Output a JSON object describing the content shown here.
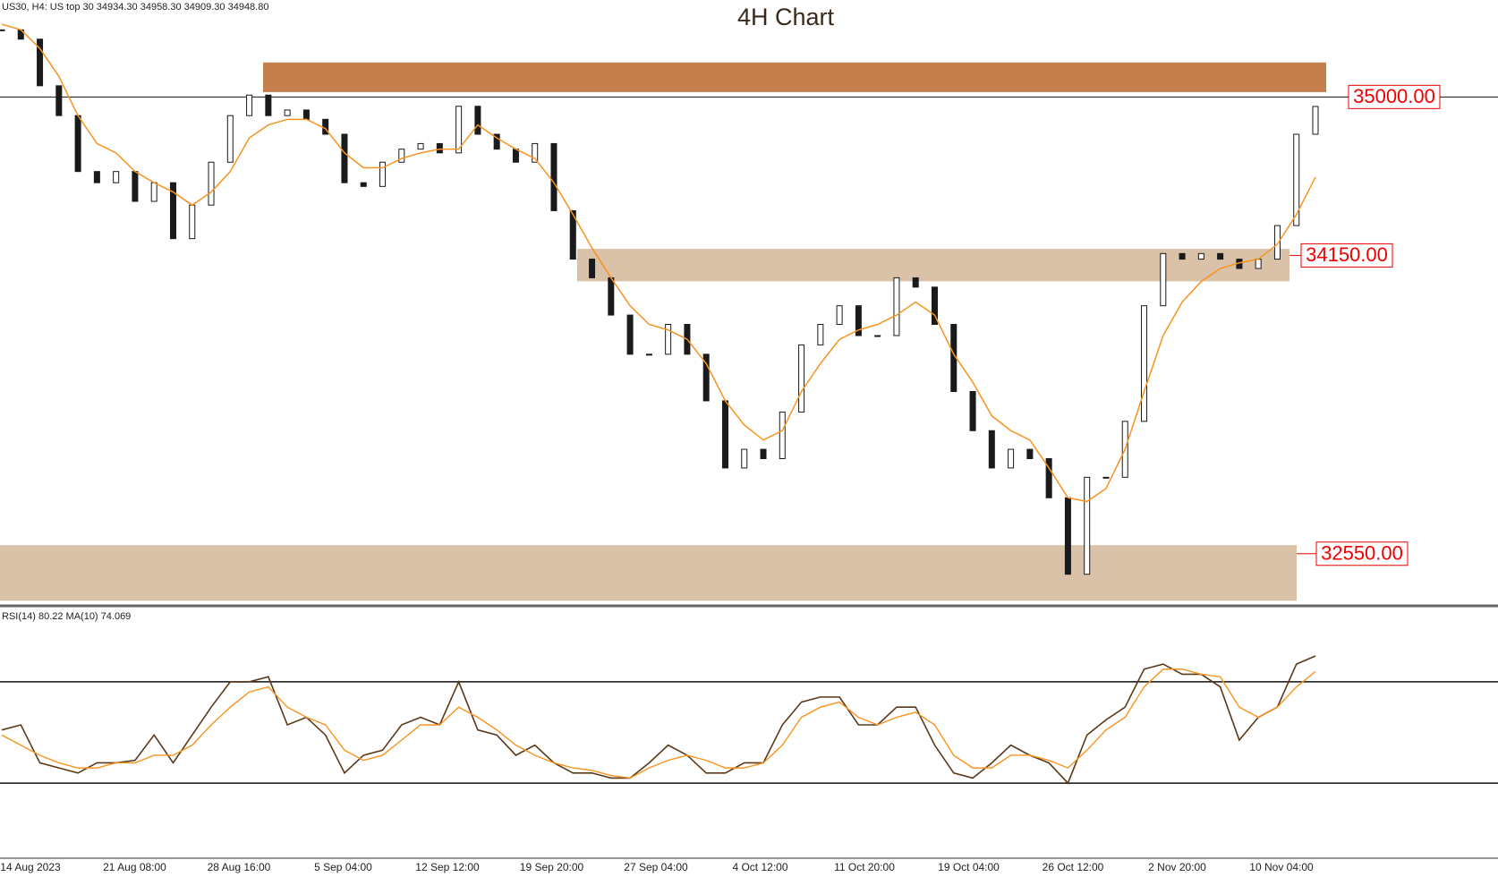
{
  "header": "US30, H4:  US top 30  34934.30 34958.30 34909.30 34948.80",
  "chart_data": [
    {
      "type": "candlestick",
      "title": "4H Chart",
      "color": "#1a1a1a",
      "up_color": "#ffffff",
      "close": [
        35360,
        35310,
        35060,
        34900,
        34600,
        34540,
        34600,
        34440,
        34540,
        34240,
        34420,
        34650,
        34900,
        35010,
        34900,
        34930,
        34880,
        34800,
        34540,
        34520,
        34650,
        34720,
        34750,
        34700,
        34950,
        34800,
        34720,
        34650,
        34750,
        34390,
        34130,
        34030,
        33830,
        33620,
        33620,
        33780,
        33620,
        33370,
        33010,
        33110,
        33060,
        33310,
        33670,
        33780,
        33880,
        33720,
        33720,
        34030,
        33980,
        33780,
        33420,
        33210,
        33010,
        33110,
        33060,
        32850,
        32440,
        32960,
        32960,
        33260,
        33880,
        34160,
        34130,
        34160,
        34130,
        34080,
        34130,
        34310,
        34800,
        34949
      ],
      "ma": [
        35390,
        35360,
        35260,
        35110,
        34900,
        34750,
        34700,
        34600,
        34540,
        34490,
        34420,
        34490,
        34600,
        34780,
        34850,
        34880,
        34880,
        34830,
        34700,
        34620,
        34620,
        34670,
        34700,
        34720,
        34720,
        34850,
        34780,
        34720,
        34670,
        34540,
        34370,
        34190,
        34030,
        33880,
        33780,
        33750,
        33700,
        33570,
        33370,
        33240,
        33160,
        33210,
        33420,
        33570,
        33700,
        33750,
        33780,
        33830,
        33900,
        33830,
        33620,
        33470,
        33290,
        33210,
        33160,
        33010,
        32850,
        32830,
        32900,
        33110,
        33420,
        33720,
        33900,
        34010,
        34080,
        34110,
        34130,
        34210,
        34370,
        34570
      ],
      "ma_color": "#f7931e",
      "ylim": [
        32280,
        35520
      ],
      "zones": [
        {
          "from": 35026,
          "to": 35185,
          "color": "#c47f4c"
        },
        {
          "from": 34011,
          "to": 34185,
          "color": "#d9c2a7"
        },
        {
          "from": 32298,
          "to": 32596,
          "color": "#d9c2a7"
        }
      ],
      "levels": [
        {
          "value": 35000,
          "label": "35000.00"
        },
        {
          "value": 34150,
          "label": "34150.00"
        },
        {
          "value": 32550,
          "label": "32550.00"
        }
      ],
      "label_color": "#ee0000"
    },
    {
      "type": "line",
      "title": "RSI(14) 80.22 MA(10) 74.069",
      "ylim": [
        0,
        100
      ],
      "levels": [
        70,
        30
      ],
      "series": [
        {
          "color": "#5a3818",
          "values": [
            51,
            53,
            38,
            36,
            34,
            38,
            38,
            39,
            49,
            38,
            49,
            60,
            70,
            70,
            72,
            53,
            56,
            49,
            34,
            41,
            43,
            53,
            56,
            53,
            70,
            51,
            49,
            41,
            45,
            38,
            34,
            34,
            32,
            32,
            38,
            45,
            41,
            34,
            34,
            38,
            38,
            53,
            62,
            64,
            64,
            53,
            53,
            60,
            60,
            45,
            34,
            32,
            38,
            45,
            41,
            38,
            30,
            49,
            55,
            60,
            75,
            77,
            73,
            73,
            68,
            47,
            56,
            60,
            77,
            80.22
          ]
        },
        {
          "color": "#f7931e",
          "values": [
            49,
            45,
            41,
            38,
            36,
            36,
            38,
            38,
            41,
            41,
            45,
            53,
            60,
            66,
            68,
            60,
            56,
            53,
            43,
            39,
            41,
            47,
            53,
            53,
            60,
            56,
            51,
            45,
            41,
            38,
            36,
            35,
            33,
            32,
            36,
            39,
            41,
            39,
            36,
            36,
            38,
            45,
            56,
            60,
            62,
            56,
            53,
            56,
            58,
            53,
            41,
            36,
            36,
            41,
            41,
            39,
            36,
            43,
            51,
            56,
            68,
            75,
            75,
            73,
            72,
            60,
            56,
            60,
            68,
            74.069
          ]
        }
      ],
      "x_labels": [
        "14 Aug 2023",
        "21 Aug 08:00",
        "28 Aug 16:00",
        "5 Sep 04:00",
        "12 Sep 12:00",
        "19 Sep 20:00",
        "27 Sep 04:00",
        "4 Oct 12:00",
        "11 Oct 20:00",
        "19 Oct 04:00",
        "26 Oct 12:00",
        "2 Nov 20:00",
        "10 Nov 04:00"
      ]
    }
  ]
}
